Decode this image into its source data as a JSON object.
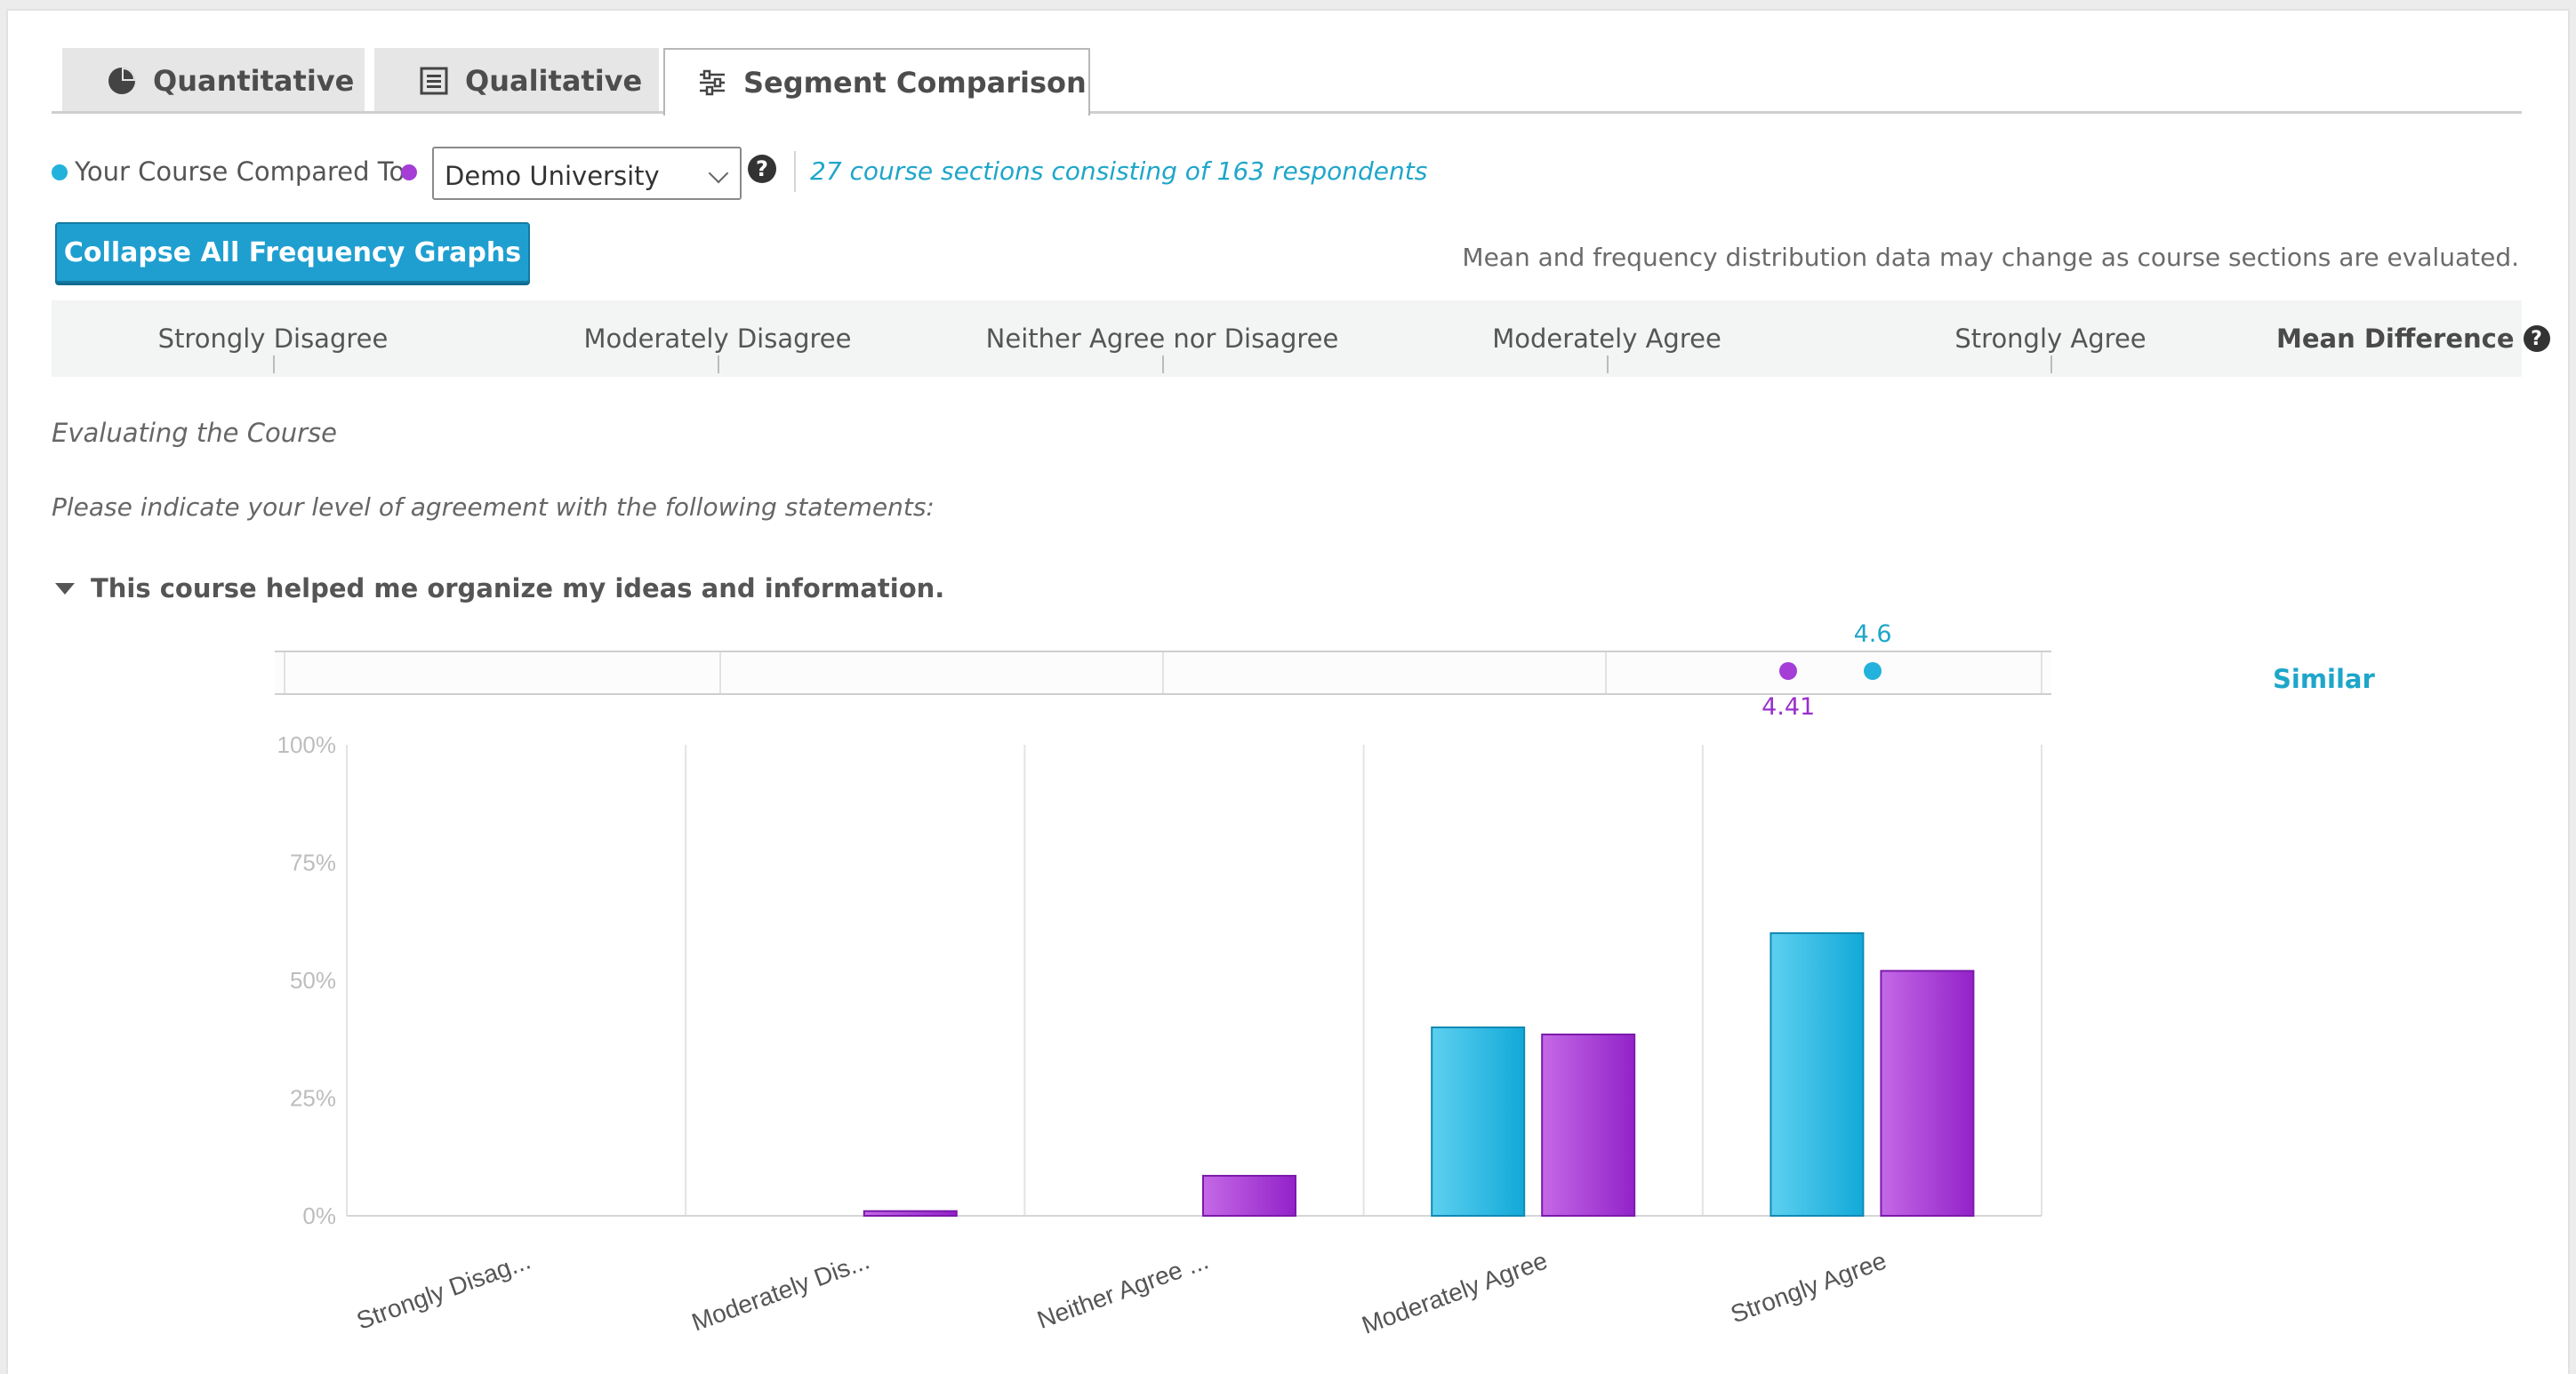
{
  "tabs": [
    {
      "label": "Quantitative",
      "icon": "pie-chart-icon",
      "active": false
    },
    {
      "label": "Qualitative",
      "icon": "document-list-icon",
      "active": false
    },
    {
      "label": "Segment Comparison",
      "icon": "sliders-icon",
      "active": true
    }
  ],
  "compare": {
    "your_course_label": "Your Course Compared To",
    "your_color": "#22b2dc",
    "compare_color": "#a43ed6",
    "selected": "Demo University",
    "help": "?",
    "info": "27 course sections consisting of 163 respondents"
  },
  "toolbar": {
    "collapse_label": "Collapse All Frequency Graphs",
    "note": "Mean and frequency distribution data may change as course sections are evaluated."
  },
  "scale": {
    "labels": [
      "Strongly Disagree",
      "Moderately Disagree",
      "Neither Agree nor Disagree",
      "Moderately Agree",
      "Strongly Agree"
    ],
    "mean_difference_label": "Mean Difference",
    "help": "?"
  },
  "section": {
    "title": "Evaluating the Course",
    "instructions": "Please indicate your level of agreement with the following statements:"
  },
  "question": {
    "text": "This course helped me organize my ideas and information.",
    "your_mean": "4.6",
    "your_mean_value": 4.6,
    "compare_mean": "4.41",
    "compare_mean_value": 4.41,
    "difference": "Similar"
  },
  "chart_data": {
    "type": "bar",
    "categories": [
      "Strongly Disag...",
      "Moderately Dis...",
      "Neither Agree ...",
      "Moderately Agree",
      "Strongly Agree"
    ],
    "series": [
      {
        "values": [
          0,
          0,
          0,
          40,
          60
        ],
        "color": "#22b2dc"
      },
      {
        "values": [
          0,
          1,
          8.5,
          38.5,
          52
        ],
        "color": "#a43ed6"
      }
    ],
    "ytick_labels": [
      "0%",
      "25%",
      "50%",
      "75%",
      "100%"
    ],
    "ylim": [
      0,
      100
    ],
    "grid": true
  }
}
